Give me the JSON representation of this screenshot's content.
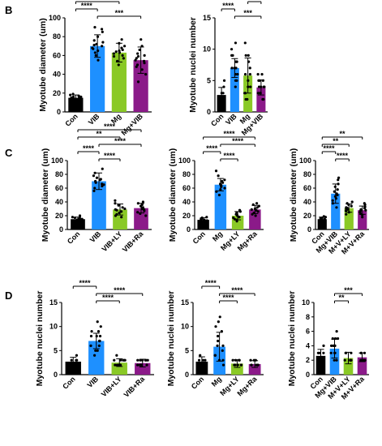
{
  "panel_labels": [
    "B",
    "C",
    "D"
  ],
  "colors": {
    "Con": "#000000",
    "VIB": "#1e90ff",
    "Mg": "#1e90ff",
    "Mg+VIB": "#1e90ff",
    "green": "#8ac926",
    "purple": "#8b1a89"
  },
  "chart_data": [
    {
      "type": "bar",
      "panel": "B",
      "ylabel": "Myotube diameter (um)",
      "ylim": [
        0,
        100
      ],
      "yticks": [
        0,
        20,
        40,
        60,
        80,
        100
      ],
      "categories": [
        "Con",
        "VIB",
        "Mg",
        "Mg+VIB"
      ],
      "values": [
        15,
        70,
        63,
        55
      ],
      "errors": [
        3,
        12,
        10,
        14
      ],
      "colors": [
        "#000000",
        "#1e90ff",
        "#8ac926",
        "#8b1a89"
      ],
      "points": [
        [
          11,
          12,
          13,
          14,
          14,
          15,
          15,
          16,
          16,
          17,
          18,
          19
        ],
        [
          55,
          60,
          63,
          65,
          67,
          68,
          70,
          71,
          72,
          74,
          76,
          80,
          85,
          88,
          90
        ],
        [
          50,
          54,
          57,
          59,
          60,
          62,
          63,
          64,
          65,
          66,
          68,
          70,
          73,
          77
        ],
        [
          32,
          40,
          45,
          48,
          50,
          52,
          54,
          55,
          57,
          59,
          60,
          62,
          66,
          70,
          77
        ]
      ],
      "brackets": [
        {
          "from": 0,
          "to": 3,
          "label": "****"
        },
        {
          "from": 0,
          "to": 2,
          "label": "****"
        },
        {
          "from": 0,
          "to": 1,
          "label": "****"
        },
        {
          "from": 1,
          "to": 3,
          "label": "***"
        }
      ]
    },
    {
      "type": "bar",
      "panel": "B",
      "ylabel": "Myotube nuclei number",
      "ylim": [
        0,
        15
      ],
      "yticks": [
        0,
        5,
        10,
        15
      ],
      "categories": [
        "Con",
        "VIB",
        "Mg",
        "Mg+VIB"
      ],
      "values": [
        2.7,
        7.0,
        5.8,
        3.9
      ],
      "errors": [
        1.2,
        1.5,
        2.8,
        1.2
      ],
      "colors": [
        "#000000",
        "#1e90ff",
        "#8ac926",
        "#8b1a89"
      ],
      "points": [
        [
          2,
          2,
          2,
          3,
          3,
          4,
          5
        ],
        [
          4,
          5,
          5,
          6,
          6,
          7,
          7,
          7,
          8,
          8,
          8,
          9,
          9,
          10,
          11
        ],
        [
          2,
          2,
          3,
          3,
          4,
          4,
          5,
          6,
          6,
          7,
          8,
          9,
          9,
          11
        ],
        [
          2,
          2,
          3,
          3,
          3,
          4,
          4,
          4,
          4,
          5,
          5,
          5,
          6,
          6
        ]
      ],
      "brackets": [
        {
          "from": 0,
          "to": 2,
          "label": "****"
        },
        {
          "from": 2,
          "to": 3,
          "label": "*"
        },
        {
          "from": 0,
          "to": 1,
          "label": "****"
        },
        {
          "from": 1,
          "to": 3,
          "label": "***"
        }
      ]
    },
    {
      "type": "bar",
      "panel": "C",
      "ylabel": "Myotube diameter (um)",
      "ylim": [
        0,
        100
      ],
      "yticks": [
        0,
        20,
        40,
        60,
        80,
        100
      ],
      "categories": [
        "Con",
        "VIB",
        "VIB+LY",
        "VIB+Ra"
      ],
      "values": [
        15,
        70,
        29,
        31
      ],
      "errors": [
        3,
        12,
        8,
        7
      ],
      "colors": [
        "#000000",
        "#1e90ff",
        "#8ac926",
        "#8b1a89"
      ],
      "points": [
        [
          10,
          12,
          13,
          14,
          15,
          15,
          16,
          17,
          18,
          20
        ],
        [
          56,
          60,
          63,
          65,
          66,
          68,
          70,
          72,
          73,
          75,
          78,
          82,
          88
        ],
        [
          18,
          20,
          22,
          24,
          26,
          28,
          29,
          30,
          32,
          35,
          38,
          42
        ],
        [
          20,
          23,
          25,
          27,
          29,
          30,
          31,
          32,
          34,
          36,
          38,
          40
        ]
      ],
      "brackets": [
        {
          "from": 0,
          "to": 3,
          "label": "****"
        },
        {
          "from": 0,
          "to": 2,
          "label": "**"
        },
        {
          "from": 1,
          "to": 3,
          "label": "****"
        },
        {
          "from": 0,
          "to": 1,
          "label": "****"
        },
        {
          "from": 1,
          "to": 2,
          "label": "****"
        }
      ]
    },
    {
      "type": "bar",
      "panel": "C",
      "ylabel": "Myotube diameter (um)",
      "ylim": [
        0,
        100
      ],
      "yticks": [
        0,
        20,
        40,
        60,
        80,
        100
      ],
      "categories": [
        "Con",
        "Mg",
        "Mg+LY",
        "Mg+Ra"
      ],
      "values": [
        14,
        65,
        20,
        29
      ],
      "errors": [
        3,
        9,
        6,
        6
      ],
      "colors": [
        "#000000",
        "#1e90ff",
        "#8ac926",
        "#8b1a89"
      ],
      "points": [
        [
          9,
          10,
          11,
          12,
          13,
          14,
          15,
          16,
          17,
          18
        ],
        [
          50,
          55,
          58,
          60,
          62,
          64,
          65,
          66,
          68,
          70,
          72,
          78,
          85
        ],
        [
          12,
          14,
          15,
          17,
          18,
          20,
          21,
          22,
          24,
          26,
          28
        ],
        [
          20,
          22,
          24,
          26,
          28,
          29,
          30,
          32,
          34,
          36,
          38
        ]
      ],
      "brackets": [
        {
          "from": 0,
          "to": 3,
          "label": "****"
        },
        {
          "from": 1,
          "to": 3,
          "label": "****"
        },
        {
          "from": 0,
          "to": 1,
          "label": "****"
        },
        {
          "from": 1,
          "to": 2,
          "label": "****"
        }
      ]
    },
    {
      "type": "bar",
      "panel": "C",
      "ylabel": "Myotube diameter (um)",
      "ylim": [
        0,
        100
      ],
      "yticks": [
        0,
        20,
        40,
        60,
        80,
        100
      ],
      "categories": [
        "Con",
        "Mg+VIB",
        "M+V+LY",
        "M+V+Ra"
      ],
      "values": [
        15,
        52,
        31,
        28
      ],
      "errors": [
        3,
        14,
        6,
        6
      ],
      "colors": [
        "#000000",
        "#1e90ff",
        "#8ac926",
        "#8b1a89"
      ],
      "points": [
        [
          10,
          12,
          13,
          14,
          15,
          16,
          17,
          18,
          19
        ],
        [
          32,
          38,
          42,
          45,
          48,
          50,
          52,
          55,
          58,
          62,
          66,
          72,
          75
        ],
        [
          22,
          25,
          27,
          29,
          30,
          31,
          32,
          34,
          36,
          38,
          40
        ],
        [
          18,
          21,
          23,
          25,
          27,
          28,
          29,
          31,
          33,
          36,
          38
        ]
      ],
      "brackets": [
        {
          "from": 0,
          "to": 3,
          "label": "**"
        },
        {
          "from": 0,
          "to": 2,
          "label": "**"
        },
        {
          "from": 0,
          "to": 1,
          "label": "****"
        },
        {
          "from": 1,
          "to": 2,
          "label": "****"
        }
      ]
    },
    {
      "type": "bar",
      "panel": "D",
      "ylabel": "Myotube nuclei number",
      "ylim": [
        0,
        15
      ],
      "yticks": [
        0,
        5,
        10,
        15
      ],
      "categories": [
        "Con",
        "VIB",
        "VIB+LY",
        "VIB+Ra"
      ],
      "values": [
        2.7,
        7.0,
        2.5,
        2.4
      ],
      "errors": [
        0.9,
        1.6,
        0.8,
        0.8
      ],
      "colors": [
        "#000000",
        "#1e90ff",
        "#8ac926",
        "#8b1a89"
      ],
      "points": [
        [
          2,
          2,
          2,
          3,
          3,
          3,
          4
        ],
        [
          4,
          5,
          5,
          6,
          6,
          7,
          7,
          7,
          8,
          8,
          8,
          9,
          9,
          10,
          11
        ],
        [
          2,
          2,
          2,
          2,
          2,
          3,
          3,
          3,
          3,
          3,
          4
        ],
        [
          2,
          2,
          2,
          2,
          2,
          3,
          3,
          3,
          3,
          3,
          3
        ]
      ],
      "brackets": [
        {
          "from": 0,
          "to": 1,
          "label": "****"
        },
        {
          "from": 1,
          "to": 3,
          "label": "****"
        },
        {
          "from": 1,
          "to": 2,
          "label": "****"
        }
      ]
    },
    {
      "type": "bar",
      "panel": "D",
      "ylabel": "Myotube nuclei number",
      "ylim": [
        0,
        15
      ],
      "yticks": [
        0,
        5,
        10,
        15
      ],
      "categories": [
        "Con",
        "Mg",
        "Mg+LY",
        "Mg+Ra"
      ],
      "values": [
        2.7,
        5.8,
        2.3,
        2.2
      ],
      "errors": [
        1.0,
        3.0,
        0.8,
        0.7
      ],
      "colors": [
        "#000000",
        "#1e90ff",
        "#8ac926",
        "#8b1a89"
      ],
      "points": [
        [
          2,
          2,
          2,
          3,
          3,
          3,
          4
        ],
        [
          2,
          3,
          3,
          4,
          4,
          5,
          6,
          6,
          7,
          8,
          9,
          10,
          11,
          12
        ],
        [
          2,
          2,
          2,
          2,
          2,
          3,
          3,
          3,
          3
        ],
        [
          2,
          2,
          2,
          2,
          2,
          2,
          3,
          3,
          3
        ]
      ],
      "brackets": [
        {
          "from": 0,
          "to": 1,
          "label": "****"
        },
        {
          "from": 1,
          "to": 3,
          "label": "****"
        },
        {
          "from": 1,
          "to": 2,
          "label": "****"
        }
      ]
    },
    {
      "type": "bar",
      "panel": "D",
      "ylabel": "Myotube nuclei number",
      "ylim": [
        0,
        10
      ],
      "yticks": [
        0,
        2,
        4,
        6,
        8,
        10
      ],
      "categories": [
        "Con",
        "Mg+VIB",
        "M+V+LY",
        "M+V+Ra"
      ],
      "values": [
        2.6,
        3.6,
        2.3,
        2.4
      ],
      "errors": [
        0.9,
        1.3,
        0.8,
        0.6
      ],
      "colors": [
        "#000000",
        "#1e90ff",
        "#8ac926",
        "#8b1a89"
      ],
      "points": [
        [
          2,
          2,
          2,
          3,
          3,
          3,
          4
        ],
        [
          2,
          2,
          3,
          3,
          3,
          4,
          4,
          4,
          4,
          5,
          5,
          5,
          6
        ],
        [
          2,
          2,
          2,
          2,
          3,
          3,
          3
        ],
        [
          2,
          2,
          2,
          2,
          3,
          3,
          3
        ]
      ],
      "brackets": [
        {
          "from": 1,
          "to": 3,
          "label": "***"
        },
        {
          "from": 1,
          "to": 2,
          "label": "**"
        }
      ]
    }
  ]
}
